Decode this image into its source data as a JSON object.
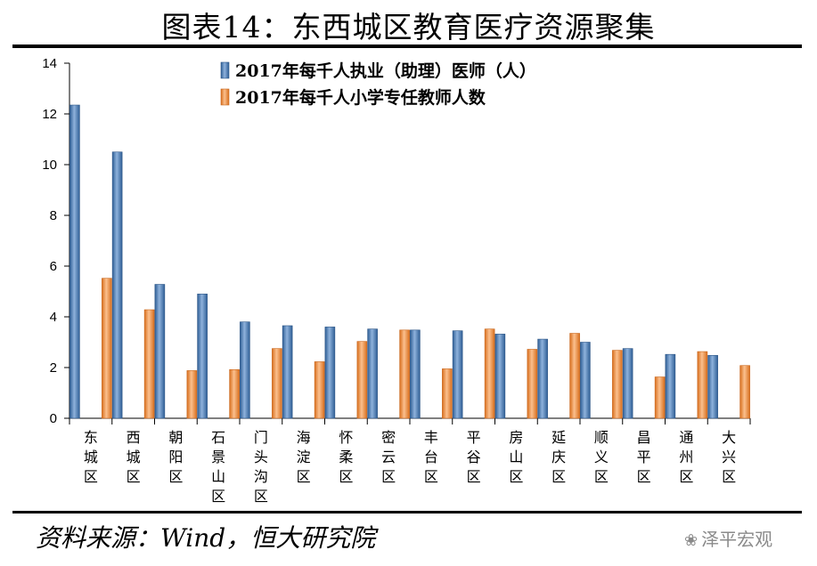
{
  "figure_title": "图表14：东西城区教育医疗资源聚集",
  "source_note": "资料来源：Wind，恒大研究院",
  "watermark": {
    "icon": "wechat-icon",
    "text": "泽平宏观"
  },
  "chart_data": {
    "type": "bar",
    "title": "",
    "xlabel": "",
    "ylabel": "",
    "ylim": [
      0,
      14
    ],
    "yticks": [
      0,
      2,
      4,
      6,
      8,
      10,
      12,
      14
    ],
    "grid": false,
    "legend_position": "top-center",
    "categories": [
      "东城区",
      "西城区",
      "朝阳区",
      "石景山区",
      "门头沟区",
      "海淀区",
      "怀柔区",
      "密云区",
      "丰台区",
      "平谷区",
      "房山区",
      "延庆区",
      "顺义区",
      "昌平区",
      "通州区",
      "大兴区"
    ],
    "series": [
      {
        "name": "2017年每千人执业（助理）医师（人）",
        "color": "#4f81bd",
        "values": [
          12.35,
          10.5,
          5.28,
          4.9,
          3.8,
          3.65,
          3.6,
          3.52,
          3.48,
          3.45,
          3.32,
          3.12,
          3.0,
          2.75,
          2.52,
          2.48
        ]
      },
      {
        "name": "2017年每千人小学专任教师人数",
        "color": "#f79646",
        "values": [
          5.52,
          4.28,
          1.88,
          1.92,
          2.75,
          2.23,
          3.03,
          3.48,
          1.95,
          3.52,
          2.72,
          3.35,
          2.68,
          1.63,
          2.63,
          2.08
        ]
      }
    ]
  }
}
